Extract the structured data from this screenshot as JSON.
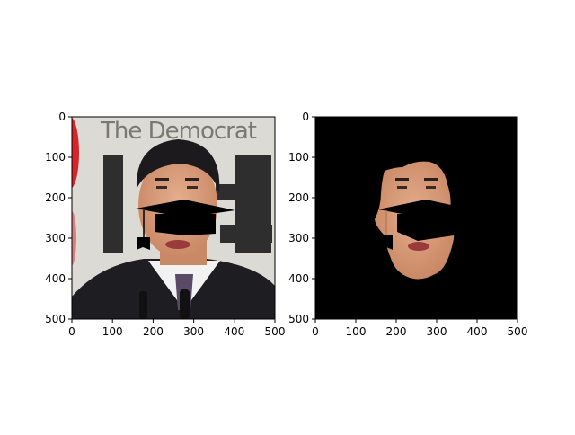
{
  "chart_data": [
    {
      "type": "image",
      "panel": "original-with-hat",
      "xlim": [
        0,
        500
      ],
      "ylim": [
        500,
        0
      ],
      "xticks": [
        0,
        100,
        200,
        300,
        400,
        500
      ],
      "yticks": [
        0,
        100,
        200,
        300,
        400,
        500
      ],
      "xtick_labels": [
        "0",
        "100",
        "200",
        "300",
        "400",
        "500"
      ],
      "ytick_labels": [
        "0",
        "100",
        "200",
        "300",
        "400",
        "500"
      ],
      "background_text": "The Democrat",
      "overlay": "graduation-cap"
    },
    {
      "type": "image",
      "panel": "face-mask-with-hat",
      "xlim": [
        0,
        500
      ],
      "ylim": [
        500,
        0
      ],
      "xticks": [
        0,
        100,
        200,
        300,
        400,
        500
      ],
      "yticks": [
        0,
        100,
        200,
        300,
        400,
        500
      ],
      "xtick_labels": [
        "0",
        "100",
        "200",
        "300",
        "400",
        "500"
      ],
      "ytick_labels": [
        "0",
        "100",
        "200",
        "300",
        "400",
        "500"
      ],
      "overlay": "graduation-cap",
      "background": "#000000"
    }
  ],
  "colors": {
    "skin": "#d9a07e",
    "suit": "#1d1d22",
    "hair": "#1c1a1c",
    "poster": "#dcdad4",
    "red_stripe": "#d8232a",
    "cap": "#000000"
  }
}
